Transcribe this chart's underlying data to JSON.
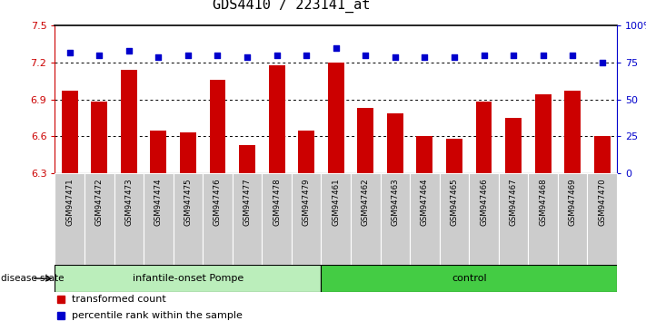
{
  "title": "GDS4410 / 223141_at",
  "samples": [
    "GSM947471",
    "GSM947472",
    "GSM947473",
    "GSM947474",
    "GSM947475",
    "GSM947476",
    "GSM947477",
    "GSM947478",
    "GSM947479",
    "GSM947461",
    "GSM947462",
    "GSM947463",
    "GSM947464",
    "GSM947465",
    "GSM947466",
    "GSM947467",
    "GSM947468",
    "GSM947469",
    "GSM947470"
  ],
  "transformed_count": [
    6.97,
    6.88,
    7.14,
    6.65,
    6.63,
    7.06,
    6.53,
    7.18,
    6.65,
    7.2,
    6.83,
    6.79,
    6.6,
    6.58,
    6.88,
    6.75,
    6.94,
    6.97,
    6.6
  ],
  "percentile": [
    82,
    80,
    83,
    79,
    80,
    80,
    79,
    80,
    80,
    85,
    80,
    79,
    79,
    79,
    80,
    80,
    80,
    80,
    75
  ],
  "group1_count": 9,
  "group2_count": 10,
  "group1_label": "infantile-onset Pompe",
  "group2_label": "control",
  "ylim_left": [
    6.3,
    7.5
  ],
  "ylim_right": [
    0,
    100
  ],
  "yticks_left": [
    6.3,
    6.6,
    6.9,
    7.2,
    7.5
  ],
  "yticks_right": [
    0,
    25,
    50,
    75,
    100
  ],
  "bar_color": "#cc0000",
  "dot_color": "#0000cc",
  "group1_bg": "#bbeebb",
  "group2_bg": "#44cc44",
  "tick_bg": "#cccccc",
  "title_fontsize": 11,
  "legend_marker_red": "transformed count",
  "legend_marker_blue": "percentile rank within the sample"
}
